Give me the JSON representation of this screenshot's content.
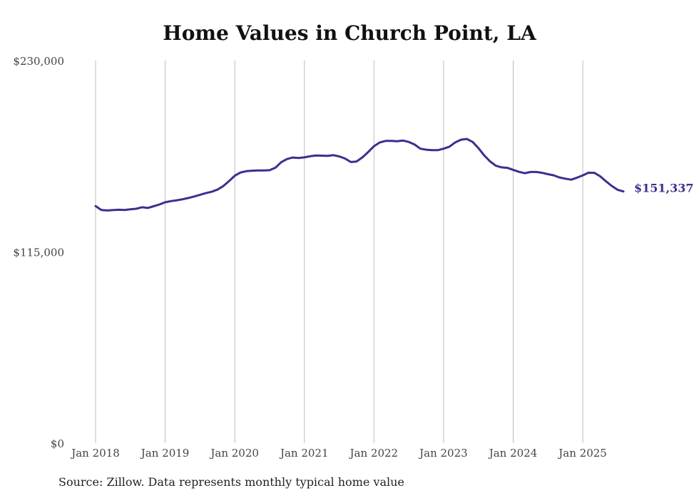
{
  "chart_data": {
    "type": "line",
    "title": "Home Values in Church Point, LA",
    "xlabel": "",
    "ylabel": "",
    "ylim": [
      0,
      230000
    ],
    "y_ticks": [
      "$0",
      "$115,000",
      "$230,000"
    ],
    "y_tick_values": [
      0,
      115000,
      230000
    ],
    "x_tick_labels": [
      "Jan 2018",
      "Jan 2019",
      "Jan 2020",
      "Jan 2021",
      "Jan 2022",
      "Jan 2023",
      "Jan 2024",
      "Jan 2025"
    ],
    "x_tick_dates": [
      "2018-01",
      "2019-01",
      "2020-01",
      "2021-01",
      "2022-01",
      "2023-01",
      "2024-01",
      "2025-01"
    ],
    "xlim": [
      "2018-01",
      "2025-08"
    ],
    "grid": "vertical",
    "end_label": "$151,337",
    "line_color": "#3b2f8f",
    "series": [
      {
        "x": [
          "2018-01",
          "2018-02",
          "2018-03",
          "2018-04",
          "2018-05",
          "2018-06",
          "2018-07",
          "2018-08",
          "2018-09",
          "2018-10",
          "2018-11",
          "2018-12",
          "2019-01",
          "2019-02",
          "2019-03",
          "2019-04",
          "2019-05",
          "2019-06",
          "2019-07",
          "2019-08",
          "2019-09",
          "2019-10",
          "2019-11",
          "2019-12",
          "2020-01",
          "2020-02",
          "2020-03",
          "2020-04",
          "2020-05",
          "2020-06",
          "2020-07",
          "2020-08",
          "2020-09",
          "2020-10",
          "2020-11",
          "2020-12",
          "2021-01",
          "2021-02",
          "2021-03",
          "2021-04",
          "2021-05",
          "2021-06",
          "2021-07",
          "2021-08",
          "2021-09",
          "2021-10",
          "2021-11",
          "2021-12",
          "2022-01",
          "2022-02",
          "2022-03",
          "2022-04",
          "2022-05",
          "2022-06",
          "2022-07",
          "2022-08",
          "2022-09",
          "2022-10",
          "2022-11",
          "2022-12",
          "2023-01",
          "2023-02",
          "2023-03",
          "2023-04",
          "2023-05",
          "2023-06",
          "2023-07",
          "2023-08",
          "2023-09",
          "2023-10",
          "2023-11",
          "2023-12",
          "2024-01",
          "2024-02",
          "2024-03",
          "2024-04",
          "2024-05",
          "2024-06",
          "2024-07",
          "2024-08",
          "2024-09",
          "2024-10",
          "2024-11",
          "2024-12",
          "2025-01",
          "2025-02",
          "2025-03",
          "2025-04",
          "2025-05",
          "2025-06",
          "2025-07",
          "2025-08"
        ],
        "values": [
          142500,
          140200,
          139900,
          140100,
          140300,
          140200,
          140600,
          140900,
          141800,
          141400,
          142400,
          143500,
          144800,
          145500,
          146000,
          146600,
          147400,
          148300,
          149300,
          150300,
          151100,
          152400,
          154500,
          157500,
          160800,
          162700,
          163500,
          163800,
          163900,
          163900,
          164100,
          165600,
          168900,
          170800,
          171700,
          171400,
          171800,
          172500,
          172900,
          172800,
          172700,
          173100,
          172400,
          171100,
          169000,
          169300,
          171800,
          175000,
          178500,
          180800,
          181700,
          181700,
          181500,
          181900,
          181100,
          179500,
          177000,
          176400,
          176100,
          176100,
          177000,
          178200,
          180800,
          182400,
          182900,
          181100,
          177400,
          173000,
          169400,
          166800,
          165800,
          165500,
          164300,
          163100,
          162300,
          163000,
          163000,
          162500,
          161700,
          161000,
          159700,
          159000,
          158400,
          159600,
          161000,
          162600,
          162500,
          160400,
          157400,
          154600,
          152300,
          151337
        ]
      }
    ]
  },
  "source_note": "Source: Zillow. Data represents monthly typical home value"
}
